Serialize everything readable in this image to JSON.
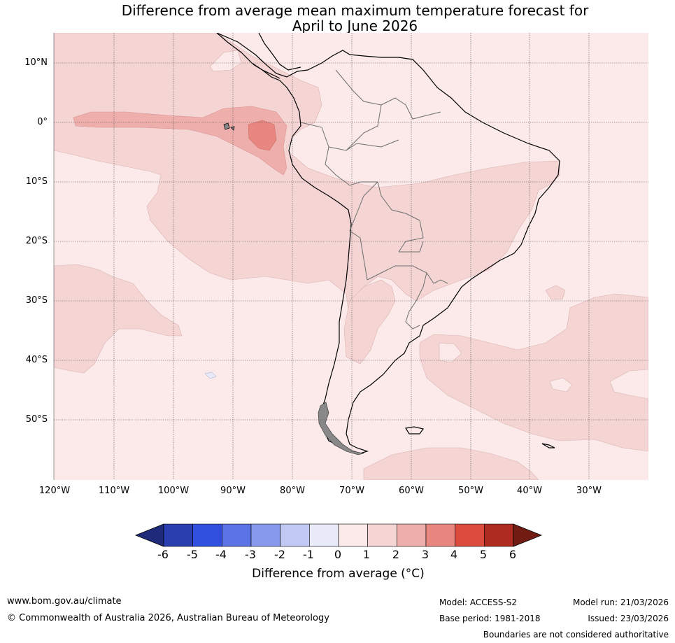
{
  "title_line1": "Difference from average mean maximum temperature forecast for",
  "title_line2": "April to June 2026",
  "lat_labels": [
    "10°N",
    "0°",
    "10°S",
    "20°S",
    "30°S",
    "40°S",
    "50°S"
  ],
  "lon_labels": [
    "120°W",
    "110°W",
    "100°W",
    "90°W",
    "80°W",
    "70°W",
    "60°W",
    "50°W",
    "40°W",
    "30°W"
  ],
  "colorbar": {
    "ticks": [
      "-6",
      "-5",
      "-4",
      "-3",
      "-2",
      "-1",
      "0",
      "1",
      "2",
      "3",
      "4",
      "5",
      "6"
    ],
    "colors": [
      "#1f2a7a",
      "#2a3eb0",
      "#3150e0",
      "#5b73e4",
      "#8799ec",
      "#c1c8f3",
      "#e9ebfa",
      "#fbeae9",
      "#f5d5d4",
      "#eeaeac",
      "#e8877f",
      "#dc4c3e",
      "#ad2b21",
      "#721c14"
    ],
    "label": "Difference from average (°C)"
  },
  "footer": {
    "website": "www.bom.gov.au/climate",
    "copyright": "© Commonwealth of Australia 2026, Australian Bureau of Meteorology",
    "model": "Model: ACCESS-S2",
    "base_period": "Base period: 1981-2018",
    "model_run": "Model run: 21/03/2026",
    "issued": "Issued: 23/03/2026",
    "disclaimer": "Boundaries are not considered authoritative"
  }
}
